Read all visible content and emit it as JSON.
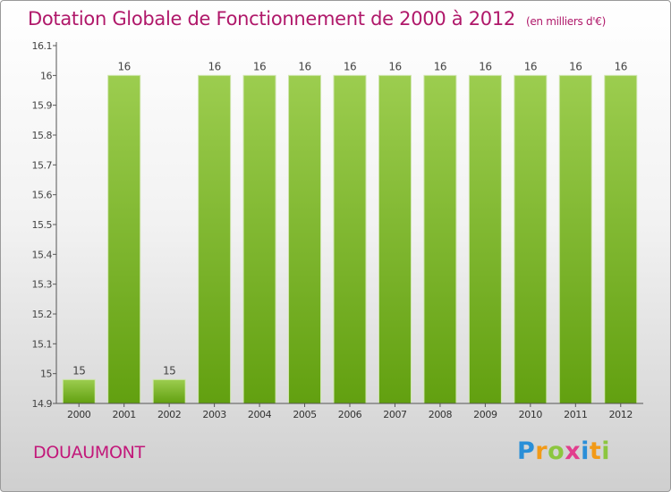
{
  "chart_data": {
    "type": "bar",
    "title": "Dotation Globale de Fonctionnement de 2000 à 2012",
    "subtitle": "(en milliers d'€)",
    "categories": [
      "2000",
      "2001",
      "2002",
      "2003",
      "2004",
      "2005",
      "2006",
      "2007",
      "2008",
      "2009",
      "2010",
      "2011",
      "2012"
    ],
    "values": [
      14.98,
      16,
      14.98,
      16,
      16,
      16,
      16,
      16,
      16,
      16,
      16,
      16,
      16
    ],
    "data_labels": [
      "15",
      "16",
      "15",
      "16",
      "16",
      "16",
      "16",
      "16",
      "16",
      "16",
      "16",
      "16",
      "16"
    ],
    "yticks": [
      "14.9",
      "15",
      "15.1",
      "15.2",
      "15.3",
      "15.4",
      "15.5",
      "15.6",
      "15.7",
      "15.8",
      "15.9",
      "16",
      "16.1"
    ],
    "ylim": [
      14.9,
      16.1
    ],
    "grid": false,
    "bar_color": "#7ec135"
  },
  "commune": "DOUAUMONT",
  "logo": {
    "letters": [
      "P",
      "r",
      "o",
      "x",
      "i",
      "t",
      "i"
    ],
    "colors": [
      "#2a8fd8",
      "#f29a17",
      "#8cc63f",
      "#e23d8d",
      "#2a8fd8",
      "#f29a17",
      "#8cc63f"
    ]
  }
}
